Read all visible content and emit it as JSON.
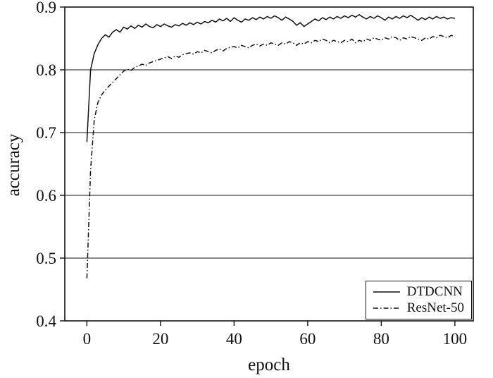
{
  "figure": {
    "background": "#ffffff",
    "line_color": "#111111"
  },
  "chart_data": {
    "type": "line",
    "title": "",
    "xlabel": "epoch",
    "ylabel": "accuracy",
    "xlim": [
      -6,
      105
    ],
    "ylim": [
      0.4,
      0.9
    ],
    "xticks": [
      0,
      20,
      40,
      60,
      80,
      100
    ],
    "yticks": [
      0.4,
      0.5,
      0.6,
      0.7,
      0.8,
      0.9
    ],
    "grid": "horizontal",
    "legend_position": "lower right",
    "x": [
      0,
      1,
      2,
      3,
      4,
      5,
      6,
      7,
      8,
      9,
      10,
      11,
      12,
      13,
      14,
      15,
      16,
      17,
      18,
      19,
      20,
      21,
      22,
      23,
      24,
      25,
      26,
      27,
      28,
      29,
      30,
      31,
      32,
      33,
      34,
      35,
      36,
      37,
      38,
      39,
      40,
      41,
      42,
      43,
      44,
      45,
      46,
      47,
      48,
      49,
      50,
      51,
      52,
      53,
      54,
      55,
      56,
      57,
      58,
      59,
      60,
      61,
      62,
      63,
      64,
      65,
      66,
      67,
      68,
      69,
      70,
      71,
      72,
      73,
      74,
      75,
      76,
      77,
      78,
      79,
      80,
      81,
      82,
      83,
      84,
      85,
      86,
      87,
      88,
      89,
      90,
      91,
      92,
      93,
      94,
      95,
      96,
      97,
      98,
      99,
      100
    ],
    "series": [
      {
        "name": "DTDCNN",
        "style": "solid",
        "values": [
          0.685,
          0.8,
          0.826,
          0.84,
          0.85,
          0.856,
          0.852,
          0.86,
          0.864,
          0.86,
          0.868,
          0.865,
          0.87,
          0.866,
          0.871,
          0.868,
          0.873,
          0.869,
          0.867,
          0.872,
          0.869,
          0.873,
          0.87,
          0.868,
          0.872,
          0.87,
          0.874,
          0.871,
          0.875,
          0.872,
          0.876,
          0.873,
          0.877,
          0.875,
          0.879,
          0.876,
          0.881,
          0.878,
          0.882,
          0.877,
          0.883,
          0.879,
          0.876,
          0.881,
          0.879,
          0.883,
          0.88,
          0.884,
          0.881,
          0.885,
          0.882,
          0.886,
          0.883,
          0.879,
          0.884,
          0.881,
          0.877,
          0.871,
          0.875,
          0.869,
          0.873,
          0.877,
          0.881,
          0.878,
          0.883,
          0.88,
          0.884,
          0.881,
          0.885,
          0.882,
          0.886,
          0.883,
          0.887,
          0.884,
          0.888,
          0.884,
          0.881,
          0.885,
          0.882,
          0.886,
          0.883,
          0.879,
          0.884,
          0.881,
          0.885,
          0.882,
          0.886,
          0.883,
          0.887,
          0.883,
          0.879,
          0.883,
          0.88,
          0.884,
          0.881,
          0.885,
          0.882,
          0.884,
          0.881,
          0.883,
          0.882
        ]
      },
      {
        "name": "ResNet-50",
        "style": "dash-dot",
        "values": [
          0.468,
          0.64,
          0.72,
          0.748,
          0.76,
          0.768,
          0.774,
          0.78,
          0.786,
          0.792,
          0.798,
          0.801,
          0.799,
          0.804,
          0.806,
          0.809,
          0.807,
          0.811,
          0.813,
          0.815,
          0.817,
          0.819,
          0.821,
          0.818,
          0.822,
          0.82,
          0.824,
          0.826,
          0.827,
          0.825,
          0.829,
          0.827,
          0.831,
          0.829,
          0.827,
          0.831,
          0.833,
          0.83,
          0.834,
          0.836,
          0.837,
          0.835,
          0.839,
          0.837,
          0.835,
          0.839,
          0.841,
          0.838,
          0.841,
          0.839,
          0.843,
          0.841,
          0.839,
          0.843,
          0.841,
          0.845,
          0.843,
          0.839,
          0.843,
          0.841,
          0.845,
          0.843,
          0.847,
          0.845,
          0.849,
          0.847,
          0.843,
          0.847,
          0.845,
          0.843,
          0.847,
          0.845,
          0.849,
          0.843,
          0.847,
          0.845,
          0.849,
          0.847,
          0.851,
          0.849,
          0.847,
          0.851,
          0.849,
          0.853,
          0.851,
          0.847,
          0.851,
          0.849,
          0.853,
          0.851,
          0.849,
          0.847,
          0.851,
          0.849,
          0.853,
          0.851,
          0.855,
          0.853,
          0.851,
          0.855,
          0.853
        ]
      }
    ]
  }
}
